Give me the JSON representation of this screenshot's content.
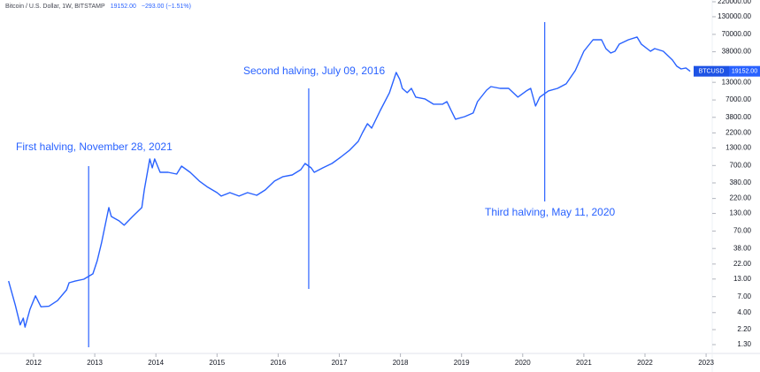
{
  "chart_data": {
    "type": "line",
    "header": {
      "symbol": "Bitcoin / U.S. Dollar, 1W, BITSTAMP",
      "last": "19152.00",
      "change": "−293.00 (−1.51%)"
    },
    "log_scale": true,
    "grid": false,
    "x": [
      2011.59,
      2011.7,
      2011.78,
      2011.83,
      2011.86,
      2011.94,
      2012.03,
      2012.12,
      2012.25,
      2012.39,
      2012.54,
      2012.58,
      2012.68,
      2012.82,
      2012.97,
      2013.04,
      2013.11,
      2013.23,
      2013.27,
      2013.4,
      2013.48,
      2013.62,
      2013.77,
      2013.81,
      2013.9,
      2013.94,
      2013.98,
      2014.07,
      2014.2,
      2014.34,
      2014.42,
      2014.56,
      2014.71,
      2014.85,
      2015.0,
      2015.07,
      2015.21,
      2015.36,
      2015.5,
      2015.65,
      2015.79,
      2015.94,
      2016.08,
      2016.23,
      2016.37,
      2016.44,
      2016.54,
      2016.59,
      2016.73,
      2016.88,
      2017.02,
      2017.17,
      2017.31,
      2017.38,
      2017.46,
      2017.53,
      2017.67,
      2017.82,
      2017.93,
      2017.99,
      2018.03,
      2018.11,
      2018.18,
      2018.25,
      2018.4,
      2018.54,
      2018.69,
      2018.76,
      2018.83,
      2018.9,
      2019.05,
      2019.19,
      2019.26,
      2019.41,
      2019.48,
      2019.63,
      2019.77,
      2019.92,
      2020.06,
      2020.13,
      2020.21,
      2020.28,
      2020.42,
      2020.57,
      2020.71,
      2020.86,
      2021.0,
      2021.15,
      2021.29,
      2021.36,
      2021.44,
      2021.51,
      2021.58,
      2021.73,
      2021.87,
      2021.94,
      2022.09,
      2022.16,
      2022.3,
      2022.45,
      2022.52,
      2022.59,
      2022.67,
      2022.74
    ],
    "series": [
      {
        "name": "BTCUSD",
        "color": "#2962ff",
        "values": [
          12.1,
          5.2,
          2.6,
          3.3,
          2.4,
          4.5,
          7.2,
          4.9,
          5.0,
          6.1,
          8.9,
          11.4,
          12.1,
          12.9,
          15.6,
          24.8,
          46,
          160,
          117,
          100,
          86,
          117,
          160,
          297,
          880,
          645,
          880,
          552,
          552,
          519,
          686,
          552,
          405,
          326,
          270,
          239,
          270,
          239,
          270,
          246,
          297,
          405,
          473,
          503,
          606,
          753,
          645,
          552,
          645,
          753,
          935,
          1200,
          1636,
          2230,
          3040,
          2600,
          4840,
          9020,
          18400,
          14400,
          10500,
          9020,
          10500,
          7720,
          7260,
          6030,
          6030,
          6610,
          4840,
          3556,
          3900,
          4420,
          6610,
          9890,
          11200,
          10500,
          10500,
          7720,
          9600,
          10500,
          5660,
          7720,
          9600,
          10500,
          12300,
          19600,
          38700,
          58000,
          58000,
          42500,
          36400,
          38700,
          49700,
          58000,
          63700,
          49700,
          38700,
          42500,
          38700,
          28400,
          22900,
          20800,
          21500,
          19152
        ]
      }
    ],
    "xlim": [
      2011.45,
      2023.1
    ],
    "xticks": [
      2012,
      2013,
      2014,
      2015,
      2016,
      2017,
      2018,
      2019,
      2020,
      2021,
      2022,
      2023
    ],
    "ylim": [
      0.953,
      234000
    ],
    "yticks": [
      {
        "value": 220000,
        "label": "220000.00"
      },
      {
        "value": 130000,
        "label": "130000.00"
      },
      {
        "value": 70000,
        "label": "70000.00"
      },
      {
        "value": 38000,
        "label": "38000.00"
      },
      {
        "value": 13000,
        "label": "13000.00"
      },
      {
        "value": 7000,
        "label": "7000.00"
      },
      {
        "value": 3800,
        "label": "3800.00"
      },
      {
        "value": 2200,
        "label": "2200.00"
      },
      {
        "value": 1300,
        "label": "1300.00"
      },
      {
        "value": 700,
        "label": "700.00"
      },
      {
        "value": 380,
        "label": "380.00"
      },
      {
        "value": 220,
        "label": "220.00"
      },
      {
        "value": 130,
        "label": "130.00"
      },
      {
        "value": 70,
        "label": "70.00"
      },
      {
        "value": 38,
        "label": "38.00"
      },
      {
        "value": 22,
        "label": "22.00"
      },
      {
        "value": 13,
        "label": "13.00"
      },
      {
        "value": 7,
        "label": "7.00"
      },
      {
        "value": 4,
        "label": "4.00"
      },
      {
        "value": 2.2,
        "label": "2.20"
      },
      {
        "value": 1.3,
        "label": "1.30"
      }
    ],
    "annotations": [
      {
        "text": "First halving, November 28, 2021",
        "x": 2012.9
      },
      {
        "text": "Second halving, July 09, 2016",
        "x": 2016.5
      },
      {
        "text": "Third halving, May 11, 2020",
        "x": 2020.36
      }
    ]
  }
}
